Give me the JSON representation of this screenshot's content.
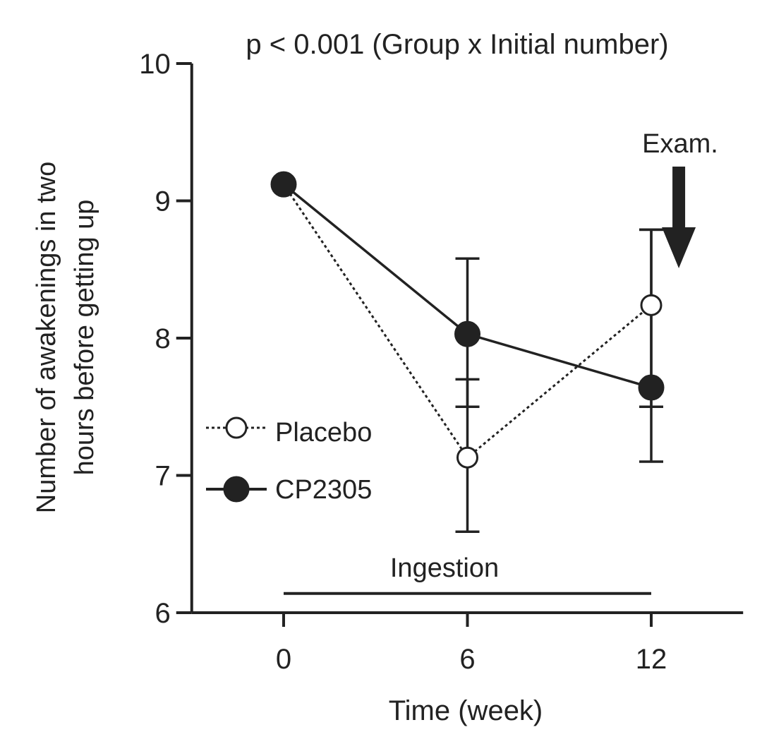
{
  "chart_data": {
    "type": "line",
    "title": "p < 0.001 (Group x Initial number)",
    "xlabel": "Time (week)",
    "ylabel_lines": [
      "Number of awakenings in two",
      "hours before getting up"
    ],
    "x": [
      0,
      6,
      12
    ],
    "x_ticks": [
      "0",
      "6",
      "12"
    ],
    "y_ticks": [
      "6",
      "7",
      "8",
      "9",
      "10"
    ],
    "xlim": [
      -3,
      15
    ],
    "ylim": [
      6,
      10
    ],
    "grid": false,
    "legend_position": "left",
    "series": [
      {
        "name": "Placebo",
        "style": "dotted",
        "marker": "open-circle",
        "values": [
          9.12,
          7.13,
          8.24
        ],
        "error_low": [
          null,
          6.59,
          7.5
        ],
        "error_high": [
          null,
          7.7,
          8.79
        ]
      },
      {
        "name": "CP2305",
        "style": "solid",
        "marker": "filled-circle",
        "values": [
          9.12,
          8.03,
          7.64
        ],
        "error_low": [
          null,
          7.5,
          7.1
        ],
        "error_high": [
          null,
          8.58,
          8.79
        ]
      }
    ],
    "annotations": {
      "exam": {
        "label": "Exam.",
        "x": 12.9
      },
      "ingestion": {
        "label": "Ingestion",
        "x_start": 0,
        "x_end": 12,
        "y": 6.14
      }
    },
    "colors": {
      "ink": "#222222",
      "background": "#ffffff"
    }
  }
}
